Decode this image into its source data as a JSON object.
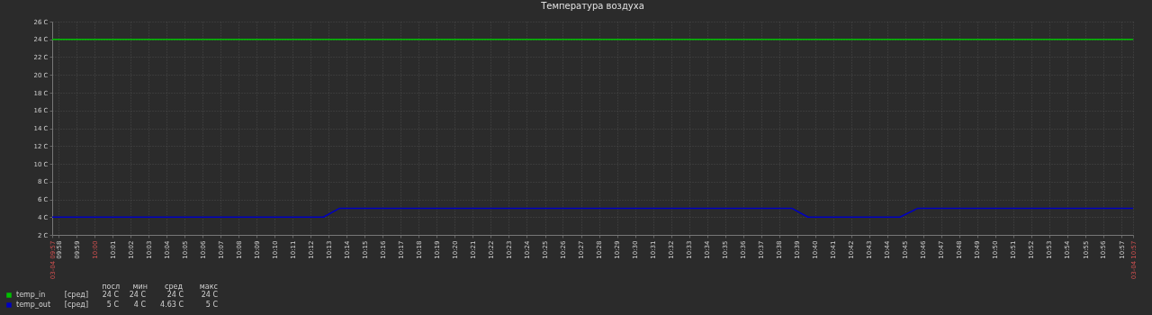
{
  "chart_data": {
    "type": "line",
    "title": "Температура воздуха",
    "xlim": [
      9.9608,
      10.9608
    ],
    "xticks": [
      {
        "value": 9.9608,
        "label": "03-04 09:57"
      },
      {
        "value": 9.9667,
        "label": "09:58"
      },
      {
        "value": 9.9833,
        "label": "09:59"
      },
      {
        "value": 10,
        "label": "10:00"
      },
      {
        "value": 10.0167,
        "label": "10:01"
      },
      {
        "value": 10.0333,
        "label": "10:02"
      },
      {
        "value": 10.05,
        "label": "10:03"
      },
      {
        "value": 10.0667,
        "label": "10:04"
      },
      {
        "value": 10.0833,
        "label": "10:05"
      },
      {
        "value": 10.1,
        "label": "10:06"
      },
      {
        "value": 10.1167,
        "label": "10:07"
      },
      {
        "value": 10.1333,
        "label": "10:08"
      },
      {
        "value": 10.15,
        "label": "10:09"
      },
      {
        "value": 10.1667,
        "label": "10:10"
      },
      {
        "value": 10.1833,
        "label": "10:11"
      },
      {
        "value": 10.2,
        "label": "10:12"
      },
      {
        "value": 10.2167,
        "label": "10:13"
      },
      {
        "value": 10.2333,
        "label": "10:14"
      },
      {
        "value": 10.25,
        "label": "10:15"
      },
      {
        "value": 10.2667,
        "label": "10:16"
      },
      {
        "value": 10.2833,
        "label": "10:17"
      },
      {
        "value": 10.3,
        "label": "10:18"
      },
      {
        "value": 10.3167,
        "label": "10:19"
      },
      {
        "value": 10.3333,
        "label": "10:20"
      },
      {
        "value": 10.35,
        "label": "10:21"
      },
      {
        "value": 10.3667,
        "label": "10:22"
      },
      {
        "value": 10.3833,
        "label": "10:23"
      },
      {
        "value": 10.4,
        "label": "10:24"
      },
      {
        "value": 10.4167,
        "label": "10:25"
      },
      {
        "value": 10.4333,
        "label": "10:26"
      },
      {
        "value": 10.45,
        "label": "10:27"
      },
      {
        "value": 10.4667,
        "label": "10:28"
      },
      {
        "value": 10.4833,
        "label": "10:29"
      },
      {
        "value": 10.5,
        "label": "10:30"
      },
      {
        "value": 10.5167,
        "label": "10:31"
      },
      {
        "value": 10.5333,
        "label": "10:32"
      },
      {
        "value": 10.55,
        "label": "10:33"
      },
      {
        "value": 10.5667,
        "label": "10:34"
      },
      {
        "value": 10.5833,
        "label": "10:35"
      },
      {
        "value": 10.6,
        "label": "10:36"
      },
      {
        "value": 10.6167,
        "label": "10:37"
      },
      {
        "value": 10.6333,
        "label": "10:38"
      },
      {
        "value": 10.65,
        "label": "10:39"
      },
      {
        "value": 10.6667,
        "label": "10:40"
      },
      {
        "value": 10.6833,
        "label": "10:41"
      },
      {
        "value": 10.7,
        "label": "10:42"
      },
      {
        "value": 10.7167,
        "label": "10:43"
      },
      {
        "value": 10.7333,
        "label": "10:44"
      },
      {
        "value": 10.75,
        "label": "10:45"
      },
      {
        "value": 10.7667,
        "label": "10:46"
      },
      {
        "value": 10.7833,
        "label": "10:47"
      },
      {
        "value": 10.8,
        "label": "10:48"
      },
      {
        "value": 10.8167,
        "label": "10:49"
      },
      {
        "value": 10.8333,
        "label": "10:50"
      },
      {
        "value": 10.85,
        "label": "10:51"
      },
      {
        "value": 10.8667,
        "label": "10:52"
      },
      {
        "value": 10.8833,
        "label": "10:53"
      },
      {
        "value": 10.9,
        "label": "10:54"
      },
      {
        "value": 10.9167,
        "label": "10:55"
      },
      {
        "value": 10.9333,
        "label": "10:56"
      },
      {
        "value": 10.95,
        "label": "10:57"
      },
      {
        "value": 10.9608,
        "label": "03-04 10:57"
      }
    ],
    "ylim": [
      2,
      26
    ],
    "yticks": [
      {
        "value": 2,
        "label": "2 C"
      },
      {
        "value": 4,
        "label": "4 C"
      },
      {
        "value": 6,
        "label": "6 C"
      },
      {
        "value": 8,
        "label": "8 C"
      },
      {
        "value": 10,
        "label": "10 C"
      },
      {
        "value": 12,
        "label": "12 C"
      },
      {
        "value": 14,
        "label": "14 C"
      },
      {
        "value": 16,
        "label": "16 C"
      },
      {
        "value": 18,
        "label": "18 C"
      },
      {
        "value": 20,
        "label": "20 C"
      },
      {
        "value": 22,
        "label": "22 C"
      },
      {
        "value": 24,
        "label": "24 C"
      },
      {
        "value": 26,
        "label": "26 C"
      }
    ],
    "series": [
      {
        "name": "temp_in",
        "color": "#00c000",
        "x": [
          9.9608,
          10.9608
        ],
        "values": [
          24,
          24
        ]
      },
      {
        "name": "temp_out",
        "color": "#0000c0",
        "x": [
          9.9608,
          10.2117,
          10.2267,
          10.645,
          10.66,
          10.745,
          10.7617,
          10.9608
        ],
        "values": [
          4,
          4,
          5,
          5,
          4,
          4,
          5,
          5
        ]
      }
    ],
    "annotations": [
      "посл",
      "мин",
      "сред",
      "макс",
      "[сред]",
      "24 C",
      "24 C",
      "24 C",
      "24 C",
      "[сред]",
      "5 C",
      "4 C",
      "4.63 C",
      "5 C"
    ],
    "grid": true,
    "legend": "bottom left",
    "line_style": "solid"
  }
}
